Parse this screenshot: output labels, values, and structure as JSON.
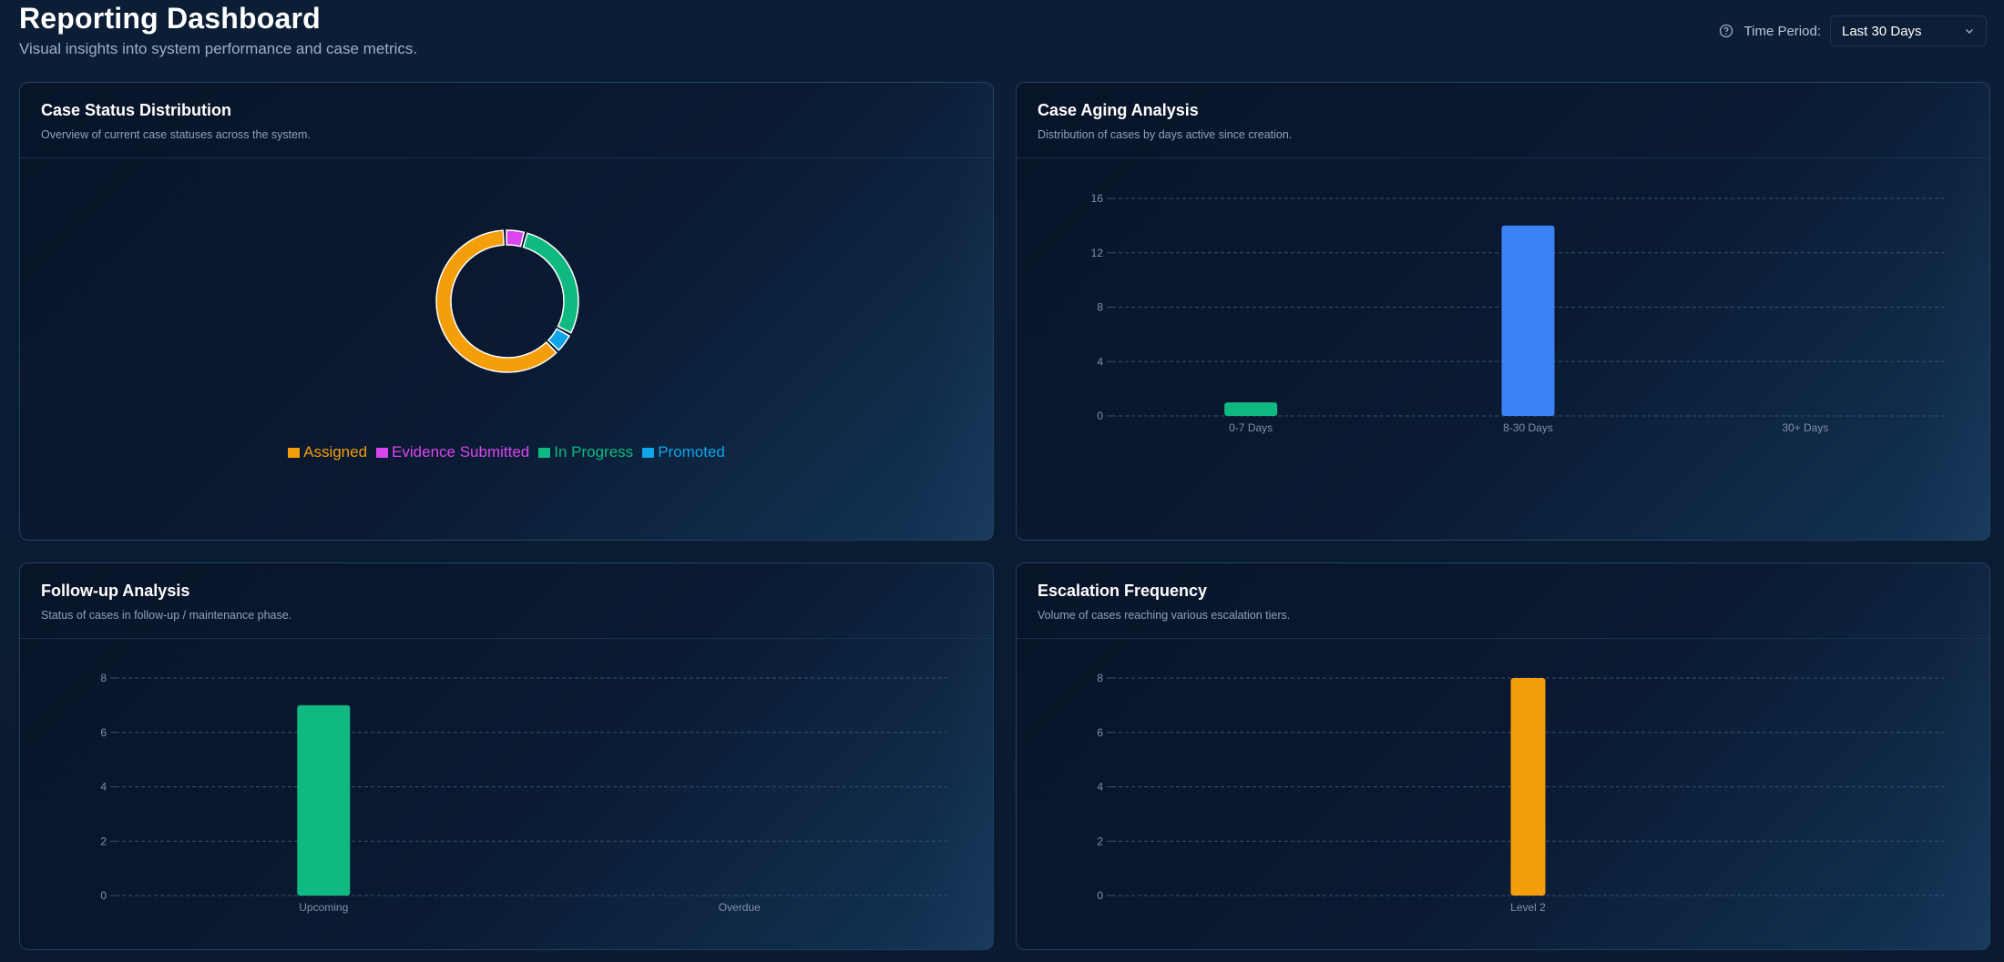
{
  "header": {
    "title": "Reporting Dashboard",
    "subtitle": "Visual insights into system performance and case metrics.",
    "time_period_label": "Time Period:",
    "time_period_value": "Last 30 Days",
    "icons": {
      "help": "help-circle-icon",
      "dropdown": "chevron-down-icon"
    }
  },
  "cards": {
    "status": {
      "title": "Case Status Distribution",
      "description": "Overview of current case statuses across the system."
    },
    "aging": {
      "title": "Case Aging Analysis",
      "description": "Distribution of cases by days active since creation."
    },
    "followup": {
      "title": "Follow-up Analysis",
      "description": "Status of cases in follow-up / maintenance phase."
    },
    "escalation": {
      "title": "Escalation Frequency",
      "description": "Volume of cases reaching various escalation tiers."
    }
  },
  "chart_data": [
    {
      "id": "status",
      "type": "pie",
      "variant": "donut",
      "categories": [
        "Assigned",
        "Evidence Submitted",
        "In Progress",
        "Promoted"
      ],
      "values": [
        13,
        1,
        6,
        1
      ],
      "colors": [
        "#f59e0b",
        "#d946ef",
        "#10b981",
        "#0ea5e9"
      ],
      "legend": "bottom"
    },
    {
      "id": "aging",
      "type": "bar",
      "categories": [
        "0-7 Days",
        "8-30 Days",
        "30+ Days"
      ],
      "values": [
        1,
        14,
        0
      ],
      "colors": [
        "#10b981",
        "#3b82f6",
        "#f59e0b"
      ],
      "ylim": [
        0,
        16
      ],
      "yticks": [
        0,
        4,
        8,
        12,
        16
      ],
      "grid": true
    },
    {
      "id": "followup",
      "type": "bar",
      "categories": [
        "Upcoming",
        "Overdue"
      ],
      "values": [
        7,
        0
      ],
      "colors": [
        "#10b981",
        "#ef4444"
      ],
      "ylim": [
        0,
        8
      ],
      "yticks": [
        0,
        2,
        4,
        6,
        8
      ],
      "grid": true
    },
    {
      "id": "escalation",
      "type": "bar",
      "categories": [
        "Level 2"
      ],
      "values": [
        8
      ],
      "colors": [
        "#f59e0b"
      ],
      "ylim": [
        0,
        8
      ],
      "yticks": [
        0,
        2,
        4,
        6,
        8
      ],
      "grid": true
    }
  ]
}
